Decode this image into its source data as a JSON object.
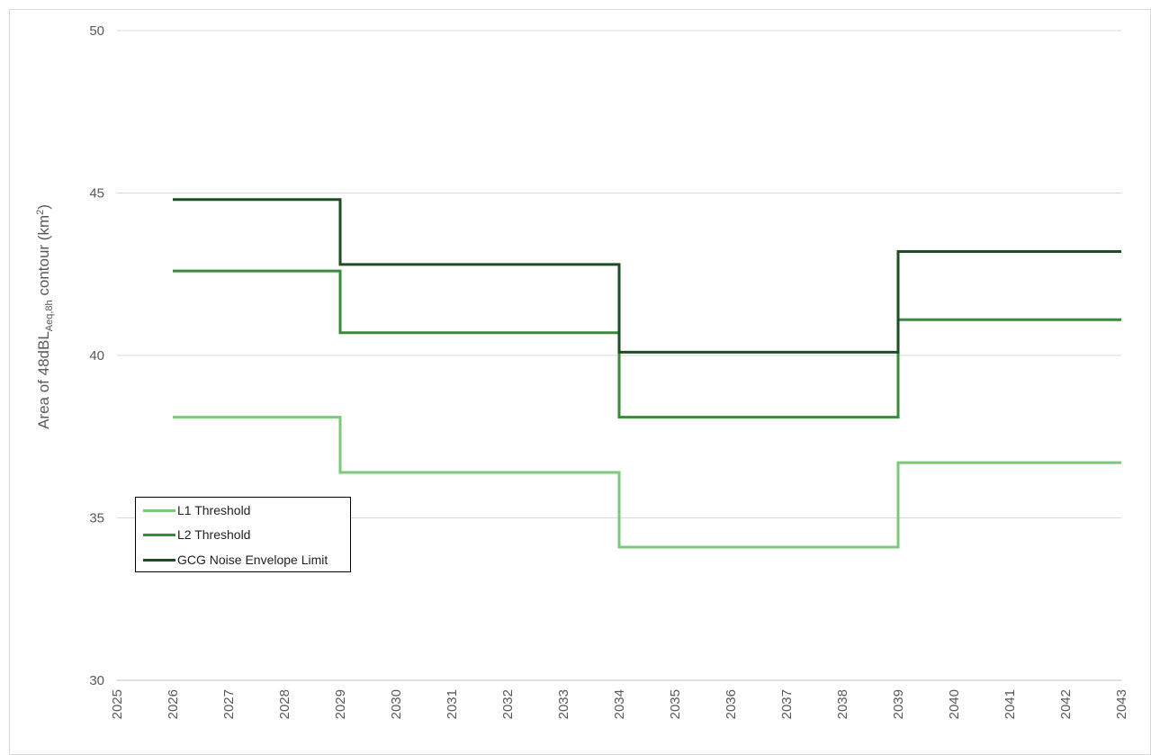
{
  "chart_data": {
    "type": "line",
    "step": true,
    "title": "",
    "ylabel": {
      "main": "Area of 48dBL",
      "subscript": "Aeq,8h",
      "suffix": " contour (km",
      "superscript": "2",
      "end": ")"
    },
    "xlabel": "",
    "xlim": [
      2025,
      2043
    ],
    "ylim": [
      30,
      50
    ],
    "xticks": [
      "2025",
      "2026",
      "2027",
      "2028",
      "2029",
      "2030",
      "2031",
      "2032",
      "2033",
      "2034",
      "2035",
      "2036",
      "2037",
      "2038",
      "2039",
      "2040",
      "2041",
      "2042",
      "2043"
    ],
    "yticks": [
      "30",
      "35",
      "40",
      "45",
      "50"
    ],
    "grid": true,
    "legend_position": "bottom-left",
    "x": [
      2026,
      2029,
      2034,
      2039,
      2043
    ],
    "series": [
      {
        "name": "L1 Threshold",
        "color": "#7dc87b",
        "values": [
          38.1,
          36.4,
          34.1,
          36.7,
          36.7
        ]
      },
      {
        "name": "L2 Threshold",
        "color": "#3a8a3c",
        "values": [
          42.6,
          40.7,
          38.1,
          41.1,
          41.1
        ]
      },
      {
        "name": "GCG Noise Envelope Limit",
        "color": "#1e4d25",
        "values": [
          44.8,
          42.8,
          40.1,
          43.2,
          43.2
        ]
      }
    ]
  }
}
